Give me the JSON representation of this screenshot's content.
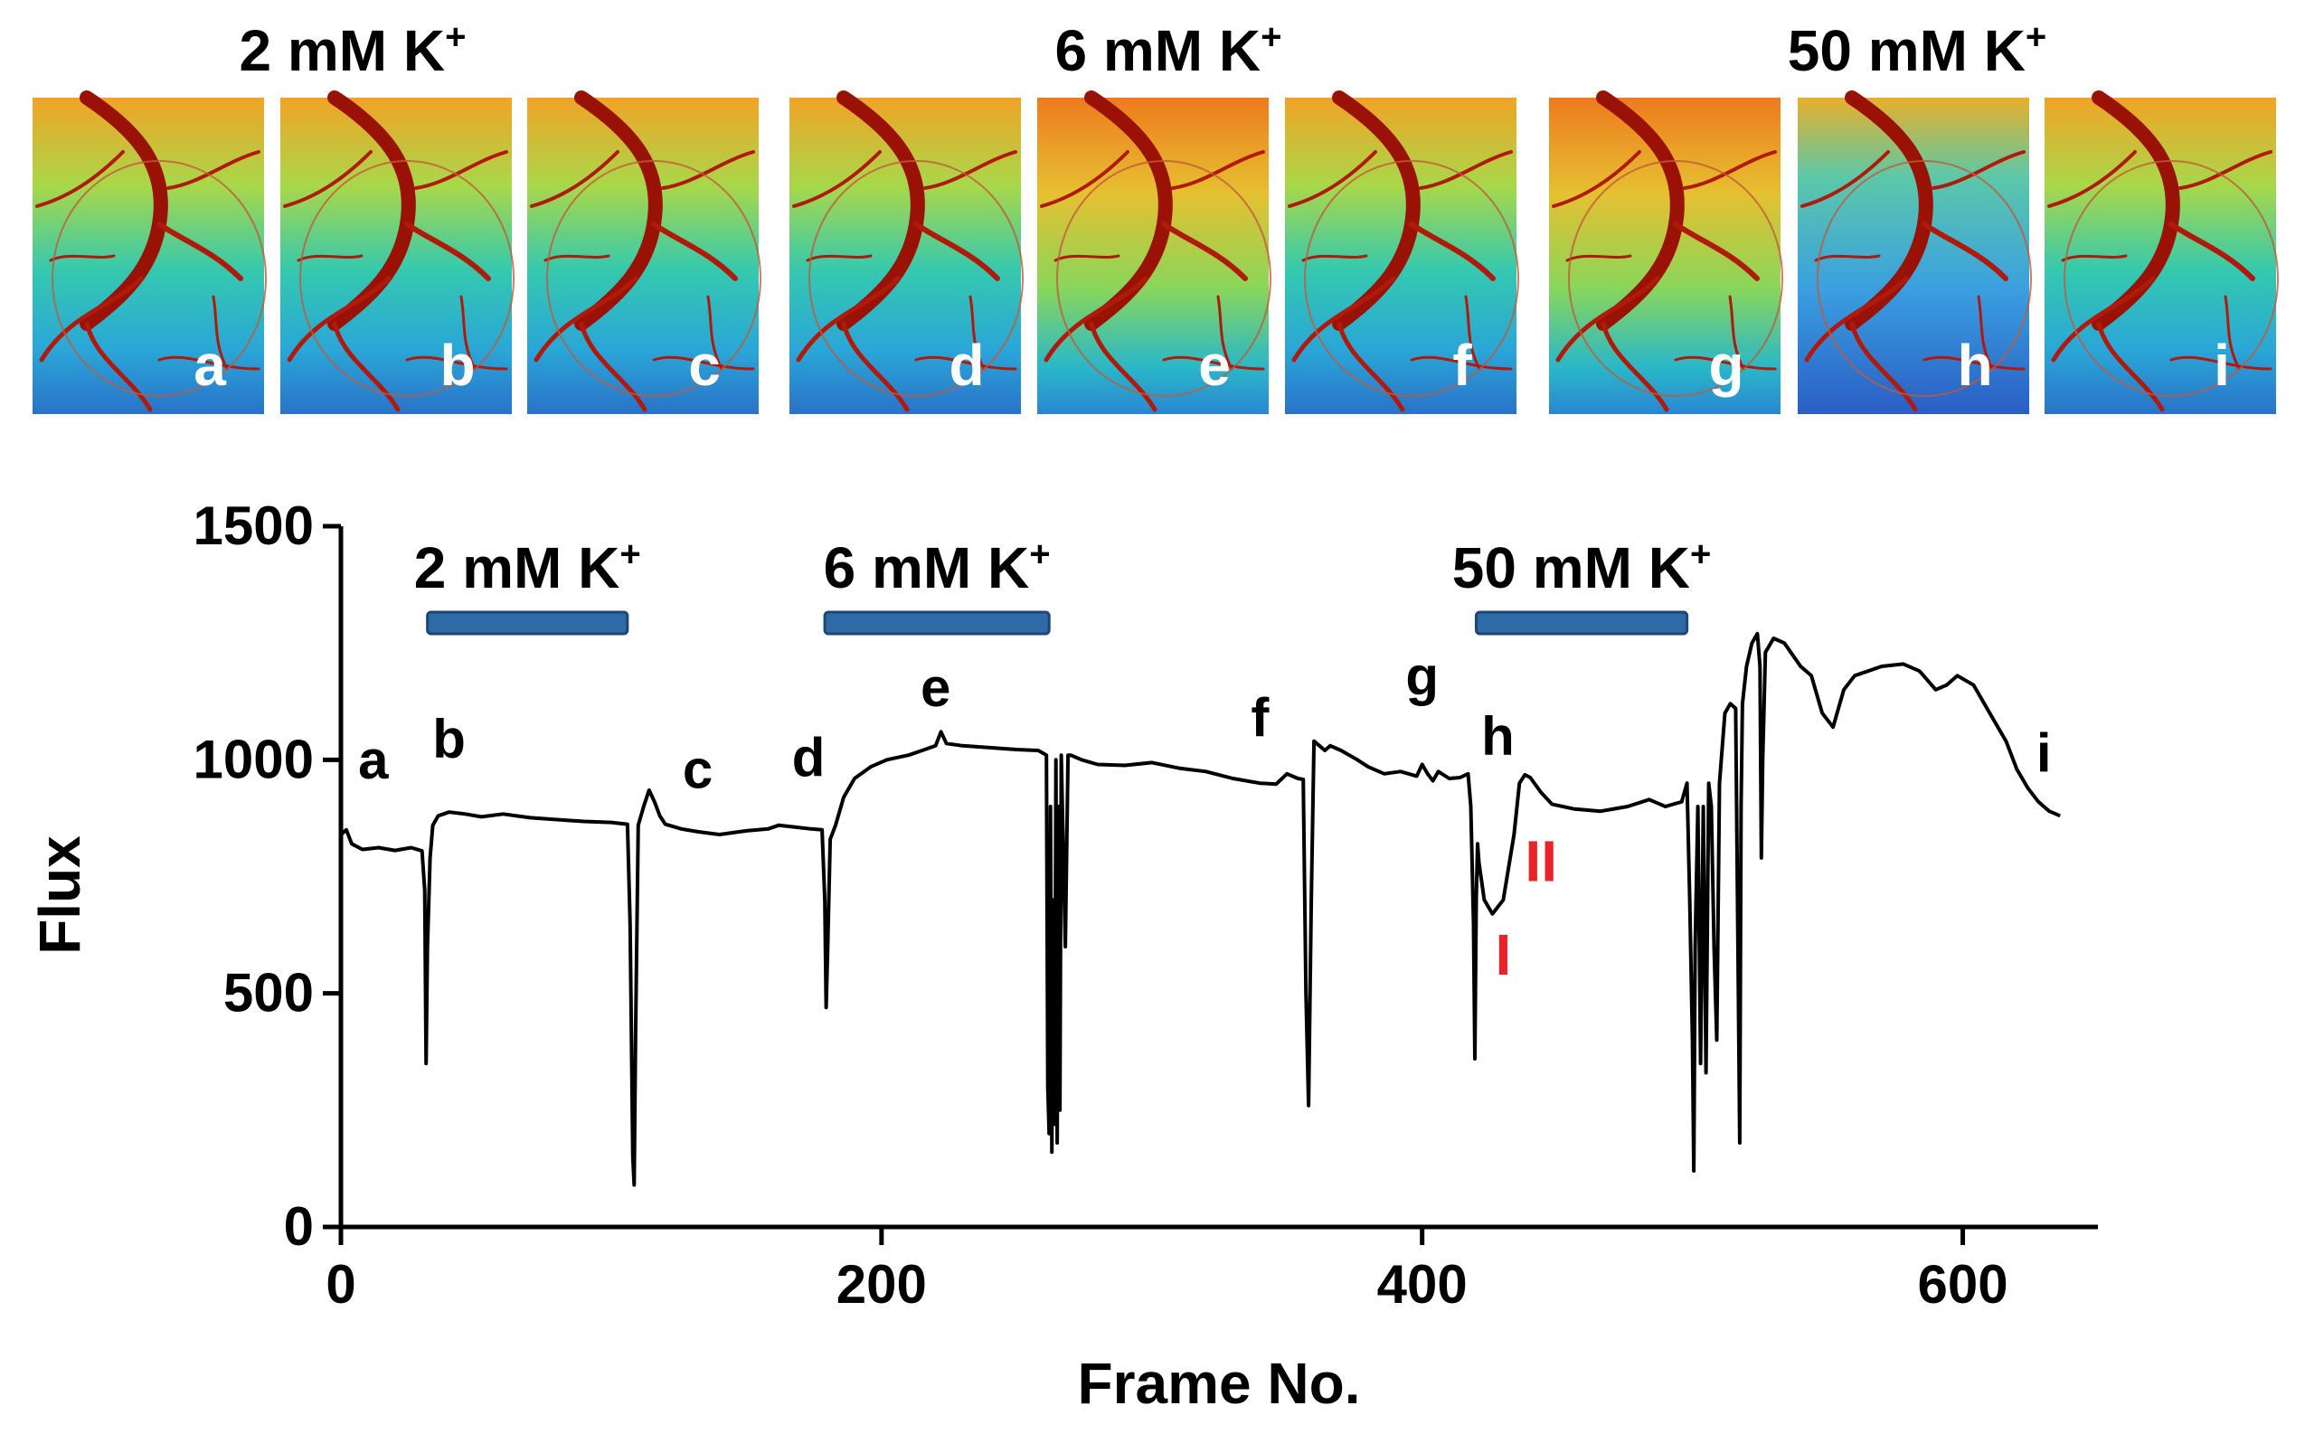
{
  "chart_data": {
    "type": "line",
    "xlabel": "Frame No.",
    "ylabel": "Flux",
    "xlim": [
      0,
      650
    ],
    "ylim": [
      0,
      1500
    ],
    "x_ticks": [
      0,
      200,
      400,
      600
    ],
    "y_ticks": [
      0,
      500,
      1000,
      1500
    ],
    "x_tick_labels": [
      "0",
      "200",
      "400",
      "600"
    ],
    "y_tick_labels": [
      "0",
      "500",
      "1000",
      "1500"
    ],
    "conditions": [
      {
        "label": "2 mM K",
        "sup": "+",
        "start": 32,
        "end": 106
      },
      {
        "label": "6 mM K",
        "sup": "+",
        "start": 179,
        "end": 262
      },
      {
        "label": "50 mM K",
        "sup": "+",
        "start": 420,
        "end": 498
      }
    ],
    "series": [
      {
        "name": "Flux",
        "color": "#000000",
        "points": [
          [
            0,
            840
          ],
          [
            2,
            850
          ],
          [
            4,
            820
          ],
          [
            8,
            808
          ],
          [
            14,
            812
          ],
          [
            20,
            806
          ],
          [
            26,
            812
          ],
          [
            30,
            805
          ],
          [
            31,
            720
          ],
          [
            31.5,
            350
          ],
          [
            32,
            600
          ],
          [
            33,
            790
          ],
          [
            34,
            860
          ],
          [
            36,
            880
          ],
          [
            40,
            888
          ],
          [
            46,
            884
          ],
          [
            52,
            878
          ],
          [
            60,
            884
          ],
          [
            70,
            876
          ],
          [
            80,
            872
          ],
          [
            90,
            868
          ],
          [
            100,
            866
          ],
          [
            106,
            862
          ],
          [
            107,
            650
          ],
          [
            108,
            150
          ],
          [
            108.5,
            90
          ],
          [
            109,
            400
          ],
          [
            110,
            860
          ],
          [
            112,
            900
          ],
          [
            114,
            935
          ],
          [
            116,
            910
          ],
          [
            118,
            880
          ],
          [
            120,
            862
          ],
          [
            126,
            852
          ],
          [
            132,
            846
          ],
          [
            140,
            840
          ],
          [
            150,
            848
          ],
          [
            158,
            852
          ],
          [
            162,
            860
          ],
          [
            168,
            856
          ],
          [
            174,
            852
          ],
          [
            178,
            850
          ],
          [
            179,
            700
          ],
          [
            179.5,
            470
          ],
          [
            180,
            580
          ],
          [
            181,
            830
          ],
          [
            183,
            860
          ],
          [
            186,
            920
          ],
          [
            190,
            960
          ],
          [
            196,
            985
          ],
          [
            202,
            1000
          ],
          [
            210,
            1010
          ],
          [
            216,
            1022
          ],
          [
            220,
            1030
          ],
          [
            222,
            1060
          ],
          [
            224,
            1035
          ],
          [
            230,
            1030
          ],
          [
            240,
            1026
          ],
          [
            250,
            1022
          ],
          [
            258,
            1020
          ],
          [
            261,
            1010
          ],
          [
            261.5,
            300
          ],
          [
            262,
            200
          ],
          [
            262.5,
            900
          ],
          [
            263,
            160
          ],
          [
            263.5,
            700
          ],
          [
            264,
            220
          ],
          [
            264.5,
            1000
          ],
          [
            265,
            180
          ],
          [
            265.5,
            900
          ],
          [
            266,
            250
          ],
          [
            266.5,
            1010
          ],
          [
            268,
            600
          ],
          [
            269,
            1010
          ],
          [
            270,
            1010
          ],
          [
            274,
            1000
          ],
          [
            280,
            990
          ],
          [
            290,
            988
          ],
          [
            300,
            994
          ],
          [
            310,
            982
          ],
          [
            320,
            975
          ],
          [
            330,
            960
          ],
          [
            340,
            950
          ],
          [
            346,
            948
          ],
          [
            350,
            970
          ],
          [
            354,
            960
          ],
          [
            356,
            958
          ],
          [
            357,
            500
          ],
          [
            358,
            260
          ],
          [
            359,
            700
          ],
          [
            360,
            1040
          ],
          [
            362,
            1030
          ],
          [
            364,
            1020
          ],
          [
            366,
            1030
          ],
          [
            370,
            1020
          ],
          [
            376,
            1000
          ],
          [
            380,
            985
          ],
          [
            386,
            970
          ],
          [
            392,
            975
          ],
          [
            398,
            965
          ],
          [
            400,
            990
          ],
          [
            402,
            970
          ],
          [
            404,
            955
          ],
          [
            406,
            975
          ],
          [
            410,
            960
          ],
          [
            414,
            962
          ],
          [
            417,
            970
          ],
          [
            418,
            900
          ],
          [
            419,
            650
          ],
          [
            419.5,
            360
          ],
          [
            420,
            700
          ],
          [
            420.5,
            820
          ],
          [
            421,
            780
          ],
          [
            423,
            700
          ],
          [
            426,
            670
          ],
          [
            430,
            700
          ],
          [
            434,
            840
          ],
          [
            436,
            950
          ],
          [
            438,
            968
          ],
          [
            440,
            962
          ],
          [
            444,
            930
          ],
          [
            448,
            905
          ],
          [
            456,
            895
          ],
          [
            466,
            890
          ],
          [
            476,
            900
          ],
          [
            484,
            915
          ],
          [
            490,
            900
          ],
          [
            496,
            910
          ],
          [
            498,
            950
          ],
          [
            499,
            700
          ],
          [
            500,
            400
          ],
          [
            500.5,
            120
          ],
          [
            501,
            600
          ],
          [
            502,
            900
          ],
          [
            503,
            350
          ],
          [
            504,
            900
          ],
          [
            505,
            330
          ],
          [
            506,
            950
          ],
          [
            507,
            900
          ],
          [
            508,
            600
          ],
          [
            509,
            400
          ],
          [
            510,
            950
          ],
          [
            512,
            1100
          ],
          [
            514,
            1120
          ],
          [
            516,
            1110
          ],
          [
            517,
            500
          ],
          [
            517.5,
            180
          ],
          [
            518,
            900
          ],
          [
            518.5,
            1120
          ],
          [
            520,
            1200
          ],
          [
            522,
            1250
          ],
          [
            524,
            1270
          ],
          [
            525,
            1200
          ],
          [
            525.5,
            790
          ],
          [
            526,
            1000
          ],
          [
            527,
            1230
          ],
          [
            530,
            1260
          ],
          [
            534,
            1250
          ],
          [
            540,
            1200
          ],
          [
            544,
            1180
          ],
          [
            548,
            1100
          ],
          [
            552,
            1070
          ],
          [
            556,
            1150
          ],
          [
            560,
            1180
          ],
          [
            570,
            1200
          ],
          [
            578,
            1205
          ],
          [
            584,
            1190
          ],
          [
            590,
            1150
          ],
          [
            594,
            1160
          ],
          [
            598,
            1180
          ],
          [
            604,
            1160
          ],
          [
            610,
            1100
          ],
          [
            616,
            1040
          ],
          [
            620,
            980
          ],
          [
            624,
            940
          ],
          [
            628,
            910
          ],
          [
            632,
            890
          ],
          [
            636,
            880
          ]
        ]
      }
    ],
    "point_labels": [
      {
        "text": "a",
        "x": 12,
        "y": 960
      },
      {
        "text": "b",
        "x": 40,
        "y": 1005
      },
      {
        "text": "c",
        "x": 132,
        "y": 940
      },
      {
        "text": "d",
        "x": 173,
        "y": 965
      },
      {
        "text": "e",
        "x": 220,
        "y": 1115
      },
      {
        "text": "f",
        "x": 340,
        "y": 1050
      },
      {
        "text": "g",
        "x": 400,
        "y": 1140
      },
      {
        "text": "h",
        "x": 428,
        "y": 1010
      },
      {
        "text": "i",
        "x": 630,
        "y": 975
      }
    ],
    "annotations": [
      {
        "text": "I",
        "x": 430,
        "y": 540,
        "color": "#e8232a"
      },
      {
        "text": "II",
        "x": 444,
        "y": 740,
        "color": "#e8232a"
      }
    ]
  },
  "image_panels": {
    "groups": [
      {
        "label": "2 mM K",
        "sup": "+"
      },
      {
        "label": "6 mM K",
        "sup": "+"
      },
      {
        "label": "50 mM K",
        "sup": "+"
      }
    ],
    "letters": [
      "a",
      "b",
      "c",
      "d",
      "e",
      "f",
      "g",
      "h",
      "i"
    ]
  }
}
